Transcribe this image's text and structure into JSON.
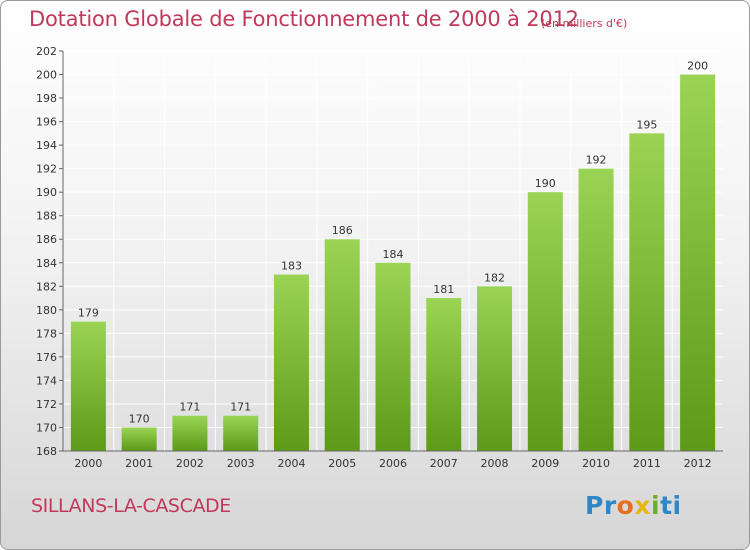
{
  "header": {
    "title": "Dotation Globale de Fonctionnement de 2000 à 2012",
    "subtitle": "(en milliers d'€)"
  },
  "footer": {
    "place": "SILLANS-LA-CASCADE",
    "logo_text": "Proxiti"
  },
  "colors": {
    "title": "#c0395b",
    "bar_top": "#9bd454",
    "bar_bottom": "#5c9a18",
    "axis": "#666666",
    "grid": "#ffffff"
  },
  "chart_data": {
    "type": "bar",
    "title": "Dotation Globale de Fonctionnement de 2000 à 2012",
    "subtitle": "(en milliers d'€)",
    "xlabel": "",
    "ylabel": "",
    "categories": [
      "2000",
      "2001",
      "2002",
      "2003",
      "2004",
      "2005",
      "2006",
      "2007",
      "2008",
      "2009",
      "2010",
      "2011",
      "2012"
    ],
    "values": [
      179,
      170,
      171,
      171,
      183,
      186,
      184,
      181,
      182,
      190,
      192,
      195,
      200
    ],
    "ylim": [
      168,
      202
    ],
    "yticks": [
      168,
      170,
      172,
      174,
      176,
      178,
      180,
      182,
      184,
      186,
      188,
      190,
      192,
      194,
      196,
      198,
      200,
      202
    ],
    "grid": true,
    "data_labels": true,
    "legend": "none"
  }
}
